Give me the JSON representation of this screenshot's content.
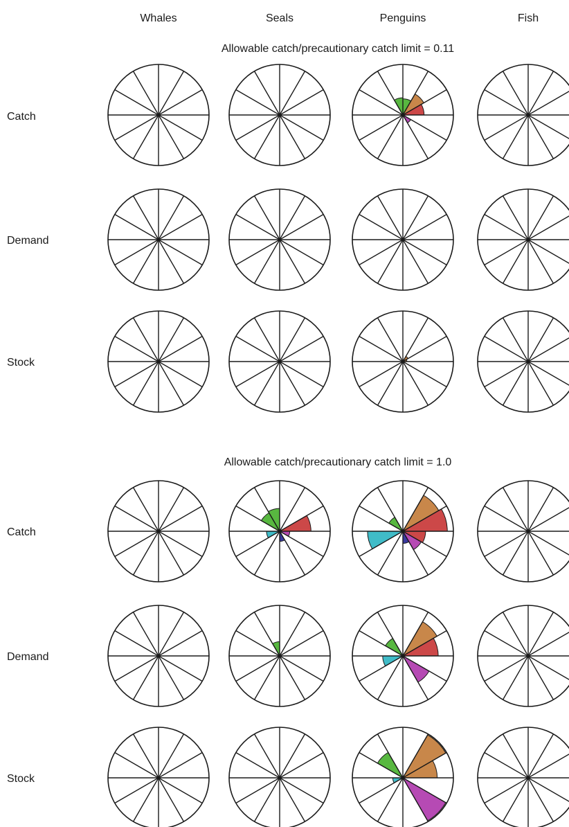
{
  "columns": [
    "Whales",
    "Seals",
    "Penguins",
    "Fish"
  ],
  "rows": [
    "Catch",
    "Demand",
    "Stock"
  ],
  "sector_colors": {
    "orange": "#c8874a",
    "red": "#cc4848",
    "purple": "#b64ab4",
    "blue": "#3a3aa0",
    "cyan": "#40bcc8",
    "green": "#58b840"
  },
  "chart_data": [
    {
      "type": "rose",
      "title": "Allowable catch/precautionary catch limit = 0.11",
      "sectors_per_rose": 12,
      "panels": [
        {
          "column": "Whales",
          "row": "Catch",
          "wedges": []
        },
        {
          "column": "Seals",
          "row": "Catch",
          "wedges": []
        },
        {
          "column": "Penguins",
          "row": "Catch",
          "wedges": [
            {
              "sector": 0,
              "value": 0.32,
              "color": "green"
            },
            {
              "sector": 1,
              "value": 0.48,
              "color": "orange"
            },
            {
              "sector": 2,
              "value": 0.42,
              "color": "red"
            },
            {
              "sector": 4,
              "value": 0.18,
              "color": "purple"
            },
            {
              "sector": 11,
              "value": 0.34,
              "color": "green"
            }
          ]
        },
        {
          "column": "Fish",
          "row": "Catch",
          "wedges": []
        },
        {
          "column": "Whales",
          "row": "Demand",
          "wedges": []
        },
        {
          "column": "Seals",
          "row": "Demand",
          "wedges": []
        },
        {
          "column": "Penguins",
          "row": "Demand",
          "wedges": []
        },
        {
          "column": "Fish",
          "row": "Demand",
          "wedges": []
        },
        {
          "column": "Whales",
          "row": "Stock",
          "wedges": []
        },
        {
          "column": "Seals",
          "row": "Stock",
          "wedges": []
        },
        {
          "column": "Penguins",
          "row": "Stock",
          "wedges": [
            {
              "sector": 1,
              "value": 0.12,
              "color": "orange"
            },
            {
              "sector": 2,
              "value": 0.08,
              "color": "orange"
            }
          ]
        },
        {
          "column": "Fish",
          "row": "Stock",
          "wedges": []
        }
      ]
    },
    {
      "type": "rose",
      "title": "Allowable catch/precautionary catch limit = 1.0",
      "sectors_per_rose": 12,
      "panels": [
        {
          "column": "Whales",
          "row": "Catch",
          "wedges": []
        },
        {
          "column": "Seals",
          "row": "Catch",
          "wedges": [
            {
              "sector": 11,
              "value": 0.45,
              "color": "green"
            },
            {
              "sector": 10,
              "value": 0.42,
              "color": "green"
            },
            {
              "sector": 2,
              "value": 0.62,
              "color": "red"
            },
            {
              "sector": 3,
              "value": 0.2,
              "color": "purple"
            },
            {
              "sector": 5,
              "value": 0.2,
              "color": "blue"
            },
            {
              "sector": 8,
              "value": 0.26,
              "color": "cyan"
            }
          ]
        },
        {
          "column": "Penguins",
          "row": "Catch",
          "wedges": [
            {
              "sector": 1,
              "value": 0.82,
              "color": "orange"
            },
            {
              "sector": 2,
              "value": 0.88,
              "color": "red"
            },
            {
              "sector": 3,
              "value": 0.45,
              "color": "red"
            },
            {
              "sector": 4,
              "value": 0.42,
              "color": "purple"
            },
            {
              "sector": 5,
              "value": 0.24,
              "color": "blue"
            },
            {
              "sector": 8,
              "value": 0.7,
              "color": "cyan"
            },
            {
              "sector": 10,
              "value": 0.32,
              "color": "green"
            }
          ]
        },
        {
          "column": "Fish",
          "row": "Catch",
          "wedges": []
        },
        {
          "column": "Whales",
          "row": "Demand",
          "wedges": []
        },
        {
          "column": "Seals",
          "row": "Demand",
          "wedges": [
            {
              "sector": 11,
              "value": 0.28,
              "color": "green"
            }
          ]
        },
        {
          "column": "Penguins",
          "row": "Demand",
          "wedges": [
            {
              "sector": 1,
              "value": 0.78,
              "color": "orange"
            },
            {
              "sector": 2,
              "value": 0.7,
              "color": "red"
            },
            {
              "sector": 4,
              "value": 0.6,
              "color": "purple"
            },
            {
              "sector": 8,
              "value": 0.4,
              "color": "cyan"
            },
            {
              "sector": 10,
              "value": 0.4,
              "color": "green"
            }
          ]
        },
        {
          "column": "Fish",
          "row": "Demand",
          "wedges": []
        },
        {
          "column": "Whales",
          "row": "Stock",
          "wedges": []
        },
        {
          "column": "Seals",
          "row": "Stock",
          "wedges": []
        },
        {
          "column": "Penguins",
          "row": "Stock",
          "wedges": [
            {
              "sector": 1,
              "value": 0.98,
              "color": "orange"
            },
            {
              "sector": 2,
              "value": 0.68,
              "color": "orange"
            },
            {
              "sector": 4,
              "value": 0.98,
              "color": "purple"
            },
            {
              "sector": 8,
              "value": 0.2,
              "color": "cyan"
            },
            {
              "sector": 10,
              "value": 0.58,
              "color": "green"
            }
          ]
        },
        {
          "column": "Fish",
          "row": "Stock",
          "wedges": []
        }
      ]
    }
  ]
}
